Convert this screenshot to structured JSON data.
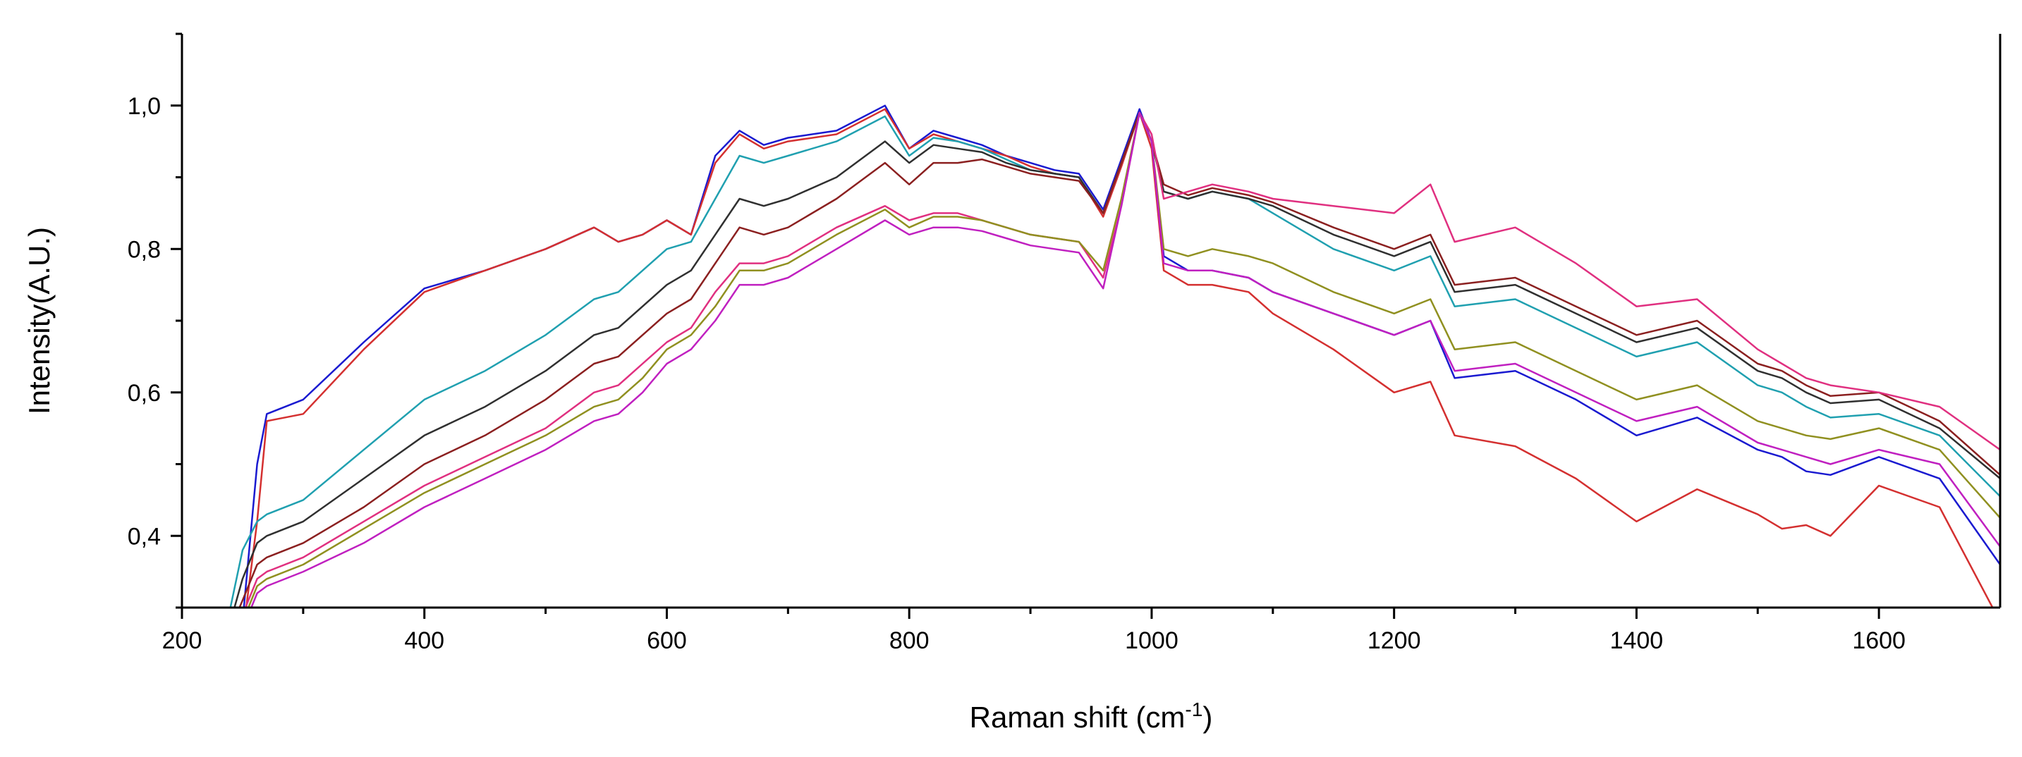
{
  "chart_data": {
    "type": "line",
    "title": "",
    "xlabel_main": "Raman shift (cm",
    "xlabel_sup": "-1",
    "xlabel_end": ")",
    "ylabel": "Intensity(A.U.)",
    "xlim": [
      200,
      1700
    ],
    "ylim": [
      0.3,
      1.1
    ],
    "x_ticks": [
      200,
      400,
      600,
      800,
      1000,
      1200,
      1400,
      1600
    ],
    "x_tick_labels": [
      "200",
      "400",
      "600",
      "800",
      "1000",
      "1200",
      "1400",
      "1600"
    ],
    "y_ticks": [
      0.4,
      0.6,
      0.8,
      1.0
    ],
    "y_tick_labels": [
      "0,4",
      "0,6",
      "0,8",
      "1,0"
    ],
    "grid": false,
    "x": [
      240,
      250,
      262,
      270,
      300,
      350,
      400,
      450,
      500,
      540,
      560,
      580,
      600,
      620,
      640,
      660,
      680,
      700,
      740,
      780,
      800,
      820,
      840,
      860,
      880,
      900,
      920,
      940,
      960,
      975,
      990,
      1000,
      1010,
      1030,
      1050,
      1080,
      1100,
      1150,
      1200,
      1230,
      1250,
      1300,
      1350,
      1400,
      1450,
      1500,
      1520,
      1540,
      1560,
      1600,
      1650,
      1700
    ],
    "series": [
      {
        "color": "#1a1ad0",
        "values": [
          0.25,
          0.28,
          0.5,
          0.57,
          0.59,
          0.67,
          0.745,
          0.77,
          0.8,
          0.83,
          0.81,
          0.82,
          0.84,
          0.82,
          0.93,
          0.965,
          0.945,
          0.955,
          0.965,
          1.0,
          0.94,
          0.965,
          0.955,
          0.945,
          0.93,
          0.92,
          0.91,
          0.905,
          0.855,
          0.925,
          0.995,
          0.95,
          0.79,
          0.77,
          0.77,
          0.76,
          0.74,
          0.71,
          0.68,
          0.7,
          0.62,
          0.63,
          0.59,
          0.54,
          0.565,
          0.52,
          0.51,
          0.49,
          0.485,
          0.51,
          0.48,
          0.36
        ]
      },
      {
        "color": "#d43030",
        "values": [
          0.25,
          0.26,
          0.42,
          0.56,
          0.57,
          0.66,
          0.74,
          0.77,
          0.8,
          0.83,
          0.81,
          0.82,
          0.84,
          0.82,
          0.92,
          0.96,
          0.94,
          0.95,
          0.96,
          0.995,
          0.94,
          0.96,
          0.95,
          0.94,
          0.93,
          0.915,
          0.905,
          0.9,
          0.845,
          0.915,
          0.99,
          0.94,
          0.77,
          0.75,
          0.75,
          0.74,
          0.71,
          0.66,
          0.6,
          0.615,
          0.54,
          0.525,
          0.48,
          0.42,
          0.465,
          0.43,
          0.41,
          0.415,
          0.4,
          0.47,
          0.44,
          0.28
        ]
      },
      {
        "color": "#20a0b0",
        "values": [
          0.3,
          0.38,
          0.42,
          0.43,
          0.45,
          0.52,
          0.59,
          0.63,
          0.68,
          0.73,
          0.74,
          0.77,
          0.8,
          0.81,
          0.87,
          0.93,
          0.92,
          0.93,
          0.95,
          0.985,
          0.93,
          0.955,
          0.95,
          0.94,
          0.925,
          0.91,
          0.905,
          0.9,
          0.85,
          0.92,
          0.99,
          0.95,
          0.88,
          0.87,
          0.88,
          0.87,
          0.85,
          0.8,
          0.77,
          0.79,
          0.72,
          0.73,
          0.69,
          0.65,
          0.67,
          0.61,
          0.6,
          0.58,
          0.565,
          0.57,
          0.54,
          0.455
        ]
      },
      {
        "color": "#303030",
        "values": [
          0.28,
          0.34,
          0.39,
          0.4,
          0.42,
          0.48,
          0.54,
          0.58,
          0.63,
          0.68,
          0.69,
          0.72,
          0.75,
          0.77,
          0.82,
          0.87,
          0.86,
          0.87,
          0.9,
          0.95,
          0.92,
          0.945,
          0.94,
          0.935,
          0.92,
          0.91,
          0.905,
          0.9,
          0.85,
          0.92,
          0.99,
          0.95,
          0.88,
          0.87,
          0.88,
          0.87,
          0.86,
          0.82,
          0.79,
          0.81,
          0.74,
          0.75,
          0.71,
          0.67,
          0.69,
          0.63,
          0.62,
          0.6,
          0.585,
          0.59,
          0.55,
          0.48
        ]
      },
      {
        "color": "#8b2020",
        "values": [
          0.27,
          0.31,
          0.36,
          0.37,
          0.39,
          0.44,
          0.5,
          0.54,
          0.59,
          0.64,
          0.65,
          0.68,
          0.71,
          0.73,
          0.78,
          0.83,
          0.82,
          0.83,
          0.87,
          0.92,
          0.89,
          0.92,
          0.92,
          0.925,
          0.915,
          0.905,
          0.9,
          0.895,
          0.85,
          0.92,
          0.99,
          0.95,
          0.89,
          0.875,
          0.885,
          0.875,
          0.865,
          0.83,
          0.8,
          0.82,
          0.75,
          0.76,
          0.72,
          0.68,
          0.7,
          0.64,
          0.63,
          0.61,
          0.595,
          0.6,
          0.56,
          0.485
        ]
      },
      {
        "color": "#e03080",
        "values": [
          0.26,
          0.29,
          0.34,
          0.35,
          0.37,
          0.42,
          0.47,
          0.51,
          0.55,
          0.6,
          0.61,
          0.64,
          0.67,
          0.69,
          0.74,
          0.78,
          0.78,
          0.79,
          0.83,
          0.86,
          0.84,
          0.85,
          0.85,
          0.84,
          0.83,
          0.82,
          0.815,
          0.81,
          0.76,
          0.86,
          0.99,
          0.96,
          0.87,
          0.88,
          0.89,
          0.88,
          0.87,
          0.86,
          0.85,
          0.89,
          0.81,
          0.83,
          0.78,
          0.72,
          0.73,
          0.66,
          0.64,
          0.62,
          0.61,
          0.6,
          0.58,
          0.52
        ]
      },
      {
        "color": "#909020",
        "values": [
          0.26,
          0.28,
          0.33,
          0.34,
          0.36,
          0.41,
          0.46,
          0.5,
          0.54,
          0.58,
          0.59,
          0.62,
          0.66,
          0.68,
          0.72,
          0.77,
          0.77,
          0.78,
          0.82,
          0.855,
          0.83,
          0.845,
          0.845,
          0.84,
          0.83,
          0.82,
          0.815,
          0.81,
          0.77,
          0.87,
          0.99,
          0.95,
          0.8,
          0.79,
          0.8,
          0.79,
          0.78,
          0.74,
          0.71,
          0.73,
          0.66,
          0.67,
          0.63,
          0.59,
          0.61,
          0.56,
          0.55,
          0.54,
          0.535,
          0.55,
          0.52,
          0.425
        ]
      },
      {
        "color": "#c020c0",
        "values": [
          0.25,
          0.27,
          0.32,
          0.33,
          0.35,
          0.39,
          0.44,
          0.48,
          0.52,
          0.56,
          0.57,
          0.6,
          0.64,
          0.66,
          0.7,
          0.75,
          0.75,
          0.76,
          0.8,
          0.84,
          0.82,
          0.83,
          0.83,
          0.825,
          0.815,
          0.805,
          0.8,
          0.795,
          0.745,
          0.86,
          0.99,
          0.95,
          0.78,
          0.77,
          0.77,
          0.76,
          0.74,
          0.71,
          0.68,
          0.7,
          0.63,
          0.64,
          0.6,
          0.56,
          0.58,
          0.53,
          0.52,
          0.51,
          0.5,
          0.52,
          0.5,
          0.385
        ]
      }
    ]
  }
}
